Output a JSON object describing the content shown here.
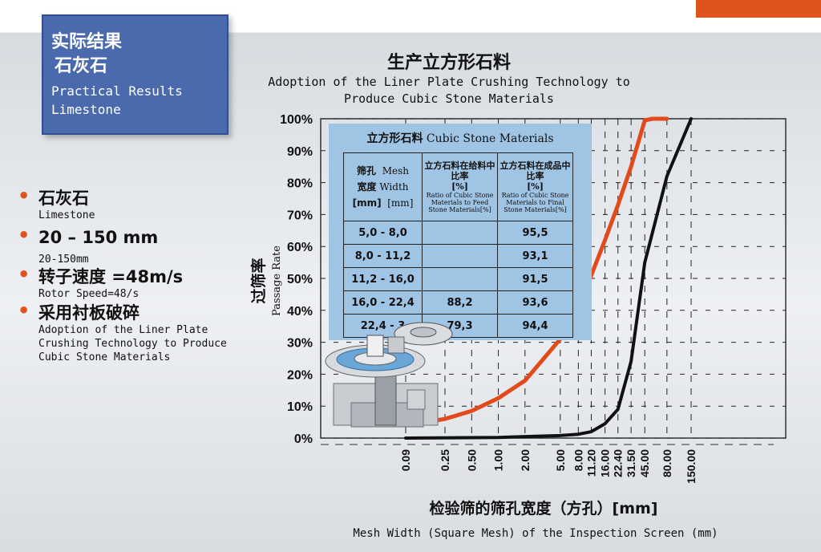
{
  "colors": {
    "accent_bar": "#e0531c",
    "title_box": "#4a6aad",
    "bullet_dot": "#e0531c",
    "feed_curve": "#e24a1c",
    "product_curve": "#111111",
    "inset_bg": "#9fc4e4"
  },
  "title_box": {
    "zh_line1": "实际结果",
    "zh_line2": "石灰石",
    "en_line1": "Practical Results",
    "en_line2": "Limestone"
  },
  "bullets": [
    {
      "zh": "石灰石",
      "en": "Limestone"
    },
    {
      "zh": "20 – 150 mm",
      "en": "20-150mm"
    },
    {
      "zh": "转子速度 =48m/s",
      "en": "Rotor Speed=48/s"
    },
    {
      "zh": "采用衬板破碎",
      "en": "Adoption of the Liner Plate Crushing Technology to Produce Cubic Stone Materials"
    }
  ],
  "chart_data": {
    "type": "line",
    "title": "生产立方形石料",
    "subtitle": "Adoption of the Liner Plate Crushing Technology to Produce Cubic Stone Materials",
    "ylabel_zh": "过筛率",
    "ylabel_en": "Passage Rate",
    "xlabel_zh": "检验筛的筛孔宽度（方孔）[mm]",
    "xlabel_en": "Mesh Width (Square Mesh) of the Inspection Screen (mm)",
    "x_scale": "log",
    "x_ticks": [
      "0.09",
      "0.25",
      "0.50",
      "1.00",
      "2.00",
      "5.00",
      "8.00",
      "11.20",
      "16.00",
      "22.40",
      "31.50",
      "45.00",
      "80.00",
      "150.00"
    ],
    "x_tick_values": [
      0.09,
      0.25,
      0.5,
      1.0,
      2.0,
      5.0,
      8.0,
      11.2,
      16.0,
      22.4,
      31.5,
      45.0,
      80.0,
      150.0
    ],
    "y_ticks": [
      "0%",
      "10%",
      "20%",
      "30%",
      "40%",
      "50%",
      "60%",
      "70%",
      "80%",
      "90%",
      "100%"
    ],
    "ylim": [
      0,
      100
    ],
    "grid": true,
    "series": [
      {
        "key": "feed",
        "points": [
          [
            0.09,
            4
          ],
          [
            0.25,
            6
          ],
          [
            0.5,
            8.5
          ],
          [
            1.0,
            12.5
          ],
          [
            2.0,
            18
          ],
          [
            5.0,
            31
          ],
          [
            8.0,
            41
          ],
          [
            11.2,
            51
          ],
          [
            16.0,
            62
          ],
          [
            22.4,
            73
          ],
          [
            31.5,
            85
          ],
          [
            45.0,
            99.5
          ],
          [
            55.0,
            100
          ],
          [
            80.0,
            100
          ]
        ]
      },
      {
        "key": "product",
        "points": [
          [
            0.09,
            0
          ],
          [
            1.0,
            0.2
          ],
          [
            5.0,
            0.8
          ],
          [
            8.0,
            1.2
          ],
          [
            11.2,
            2
          ],
          [
            16.0,
            4.5
          ],
          [
            22.4,
            9
          ],
          [
            31.5,
            24
          ],
          [
            45.0,
            55
          ],
          [
            80.0,
            82
          ],
          [
            150.0,
            100
          ]
        ]
      }
    ],
    "inset_table": {
      "title_zh": "立方形石料",
      "title_en": "Cubic Stone Materials",
      "col1_zh1": "筛孔",
      "col1_en1": "Mesh",
      "col1_zh2": "宽度",
      "col1_en2": "Width",
      "col1_zh3": "[mm]",
      "col1_en3": "[mm]",
      "col2_zh": "立方石料在给料中比率",
      "col2_pct": "[%]",
      "col2_en": "Ratio of Cubic Stone Materials to Feed Stone Materials[%]",
      "col3_zh": "立方石料在成品中比率",
      "col3_pct": "[%]",
      "col3_en": "Ratio of Cubic Stone Materials to Final Stone Materials[%]",
      "rows": [
        [
          "5,0 -   8,0",
          "",
          "95,5"
        ],
        [
          "8,0 - 11,2",
          "",
          "93,1"
        ],
        [
          "11,2 - 16,0",
          "",
          "91,5"
        ],
        [
          "16,0 - 22,4",
          "88,2",
          "93,6"
        ],
        [
          "22,4 - 3",
          "79,3",
          "94,4"
        ]
      ]
    }
  }
}
